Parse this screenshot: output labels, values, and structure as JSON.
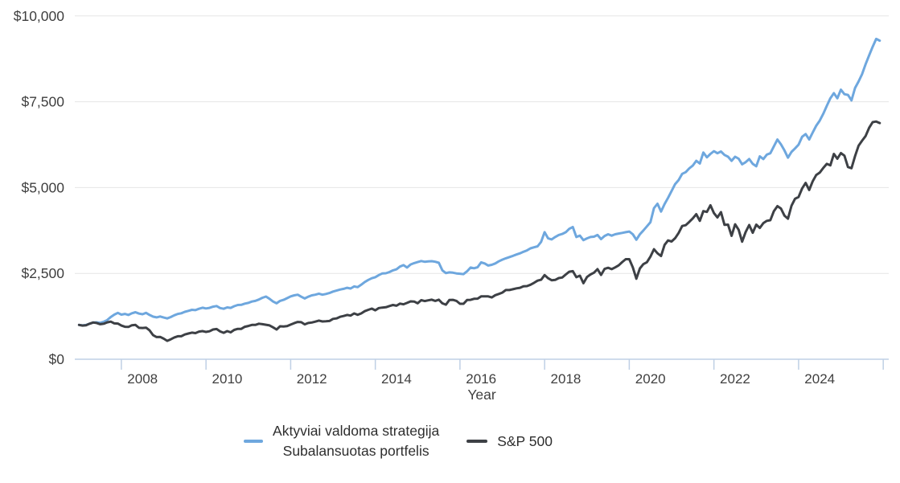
{
  "chart_data": {
    "type": "line",
    "title": "",
    "xlabel": "Year",
    "ylabel": "",
    "x_start_year": 2007,
    "x_frequency": "monthly",
    "x_axis": {
      "range": [
        2006.9,
        2026.13
      ],
      "ticks": [
        {
          "year": 2008,
          "label": "2008"
        },
        {
          "year": 2010,
          "label": "2010"
        },
        {
          "year": 2012,
          "label": "2012"
        },
        {
          "year": 2014,
          "label": "2014"
        },
        {
          "year": 2016,
          "label": "2016"
        },
        {
          "year": 2018,
          "label": "2018"
        },
        {
          "year": 2020,
          "label": "2020"
        },
        {
          "year": 2022,
          "label": "2022"
        },
        {
          "year": 2024,
          "label": "2024"
        },
        {
          "year": 2026,
          "label": ""
        }
      ],
      "label_offset_years": 0.5
    },
    "y_axis": {
      "range": [
        0,
        10000
      ],
      "ticks": [
        {
          "value": 0,
          "label": "$0"
        },
        {
          "value": 2500,
          "label": "$2,500"
        },
        {
          "value": 5000,
          "label": "$5,000"
        },
        {
          "value": 7500,
          "label": "$7,500"
        },
        {
          "value": 10000,
          "label": "$10,000"
        }
      ]
    },
    "grid": true,
    "legend_position": "bottom",
    "colors": {
      "grid": "#e6e6e6",
      "axis": "#bfd0e5",
      "tick_text": "#3f3f3f",
      "axis_title_text": "#3f3f3f"
    },
    "series": [
      {
        "name": "Aktyviai valdoma strategija / Subalansuotas portfelis",
        "label_lines": [
          "Aktyviai valdoma strategija",
          "Subalansuotas portfelis"
        ],
        "color": "#6ea7de",
        "line_width": 3,
        "values": [
          1000,
          985,
          1000,
          1035,
          1070,
          1075,
          1060,
          1090,
          1140,
          1230,
          1300,
          1350,
          1300,
          1320,
          1290,
          1340,
          1370,
          1330,
          1310,
          1350,
          1290,
          1240,
          1220,
          1245,
          1215,
          1190,
          1230,
          1280,
          1320,
          1340,
          1380,
          1410,
          1440,
          1430,
          1470,
          1500,
          1480,
          1495,
          1530,
          1550,
          1490,
          1470,
          1510,
          1495,
          1545,
          1580,
          1585,
          1620,
          1640,
          1680,
          1700,
          1740,
          1790,
          1825,
          1760,
          1680,
          1630,
          1700,
          1730,
          1780,
          1830,
          1860,
          1880,
          1820,
          1770,
          1820,
          1860,
          1880,
          1910,
          1880,
          1900,
          1930,
          1970,
          2000,
          2030,
          2050,
          2080,
          2060,
          2120,
          2100,
          2170,
          2250,
          2310,
          2360,
          2390,
          2450,
          2500,
          2505,
          2540,
          2590,
          2620,
          2700,
          2740,
          2670,
          2760,
          2800,
          2830,
          2860,
          2840,
          2850,
          2855,
          2840,
          2810,
          2590,
          2510,
          2530,
          2520,
          2500,
          2490,
          2480,
          2560,
          2670,
          2650,
          2680,
          2820,
          2790,
          2730,
          2750,
          2790,
          2850,
          2900,
          2940,
          2975,
          3010,
          3050,
          3085,
          3130,
          3170,
          3230,
          3260,
          3290,
          3420,
          3700,
          3520,
          3490,
          3560,
          3620,
          3650,
          3700,
          3800,
          3850,
          3560,
          3600,
          3470,
          3520,
          3560,
          3570,
          3620,
          3500,
          3590,
          3640,
          3600,
          3640,
          3660,
          3680,
          3700,
          3720,
          3640,
          3480,
          3640,
          3750,
          3870,
          3990,
          4400,
          4530,
          4300,
          4520,
          4700,
          4900,
          5100,
          5220,
          5400,
          5450,
          5560,
          5640,
          5780,
          5700,
          6020,
          5880,
          5980,
          6060,
          6000,
          6050,
          5950,
          5900,
          5780,
          5900,
          5840,
          5680,
          5740,
          5830,
          5690,
          5620,
          5910,
          5830,
          5960,
          6000,
          6200,
          6400,
          6260,
          6080,
          5870,
          6040,
          6140,
          6250,
          6480,
          6560,
          6400,
          6600,
          6800,
          6950,
          7150,
          7380,
          7600,
          7750,
          7600,
          7850,
          7720,
          7700,
          7540,
          7900,
          8090,
          8300,
          8590,
          8850,
          9100,
          9330,
          9280
        ]
      },
      {
        "name": "S&P 500",
        "label_lines": [
          "S&P 500"
        ],
        "color": "#3d4045",
        "line_width": 3,
        "values": [
          1000,
          980,
          990,
          1035,
          1070,
          1055,
          1020,
          1035,
          1075,
          1095,
          1045,
          1040,
          980,
          945,
          940,
          990,
          1000,
          915,
          910,
          920,
          840,
          700,
          645,
          650,
          600,
          535,
          580,
          635,
          670,
          670,
          720,
          750,
          775,
          760,
          805,
          820,
          795,
          815,
          865,
          880,
          810,
          770,
          820,
          785,
          855,
          885,
          885,
          945,
          970,
          1000,
          1000,
          1035,
          1020,
          1005,
          985,
          930,
          865,
          960,
          955,
          965,
          1010,
          1050,
          1085,
          1080,
          1015,
          1055,
          1070,
          1095,
          1125,
          1100,
          1105,
          1115,
          1175,
          1190,
          1235,
          1260,
          1290,
          1270,
          1335,
          1295,
          1335,
          1400,
          1440,
          1475,
          1425,
          1490,
          1505,
          1515,
          1550,
          1580,
          1560,
          1620,
          1600,
          1640,
          1685,
          1680,
          1630,
          1720,
          1695,
          1715,
          1735,
          1700,
          1735,
          1630,
          1590,
          1725,
          1730,
          1700,
          1615,
          1615,
          1725,
          1730,
          1760,
          1765,
          1830,
          1830,
          1830,
          1800,
          1865,
          1900,
          1940,
          2015,
          2015,
          2040,
          2065,
          2080,
          2125,
          2130,
          2170,
          2225,
          2290,
          2315,
          2450,
          2360,
          2300,
          2310,
          2365,
          2380,
          2470,
          2550,
          2565,
          2390,
          2435,
          2215,
          2395,
          2470,
          2520,
          2625,
          2455,
          2630,
          2665,
          2625,
          2675,
          2735,
          2830,
          2915,
          2915,
          2675,
          2345,
          2645,
          2770,
          2825,
          2990,
          3205,
          3085,
          3005,
          3330,
          3460,
          3430,
          3525,
          3680,
          3880,
          3905,
          4000,
          4100,
          4225,
          4030,
          4315,
          4290,
          4485,
          4255,
          4130,
          4285,
          3915,
          3920,
          3595,
          3930,
          3770,
          3425,
          3705,
          3910,
          3685,
          3920,
          3825,
          3965,
          4030,
          4050,
          4315,
          4460,
          4390,
          4180,
          4095,
          4470,
          4675,
          4725,
          4975,
          5135,
          4930,
          5180,
          5365,
          5435,
          5570,
          5690,
          5645,
          5980,
          5840,
          6005,
          5930,
          5600,
          5565,
          5915,
          6220,
          6365,
          6500,
          6740,
          6905,
          6925,
          6880
        ]
      }
    ]
  },
  "legend": {
    "item1_line1": "Aktyviai valdoma strategija",
    "item1_line2": "Subalansuotas portfelis",
    "item2": "S&P 500"
  }
}
